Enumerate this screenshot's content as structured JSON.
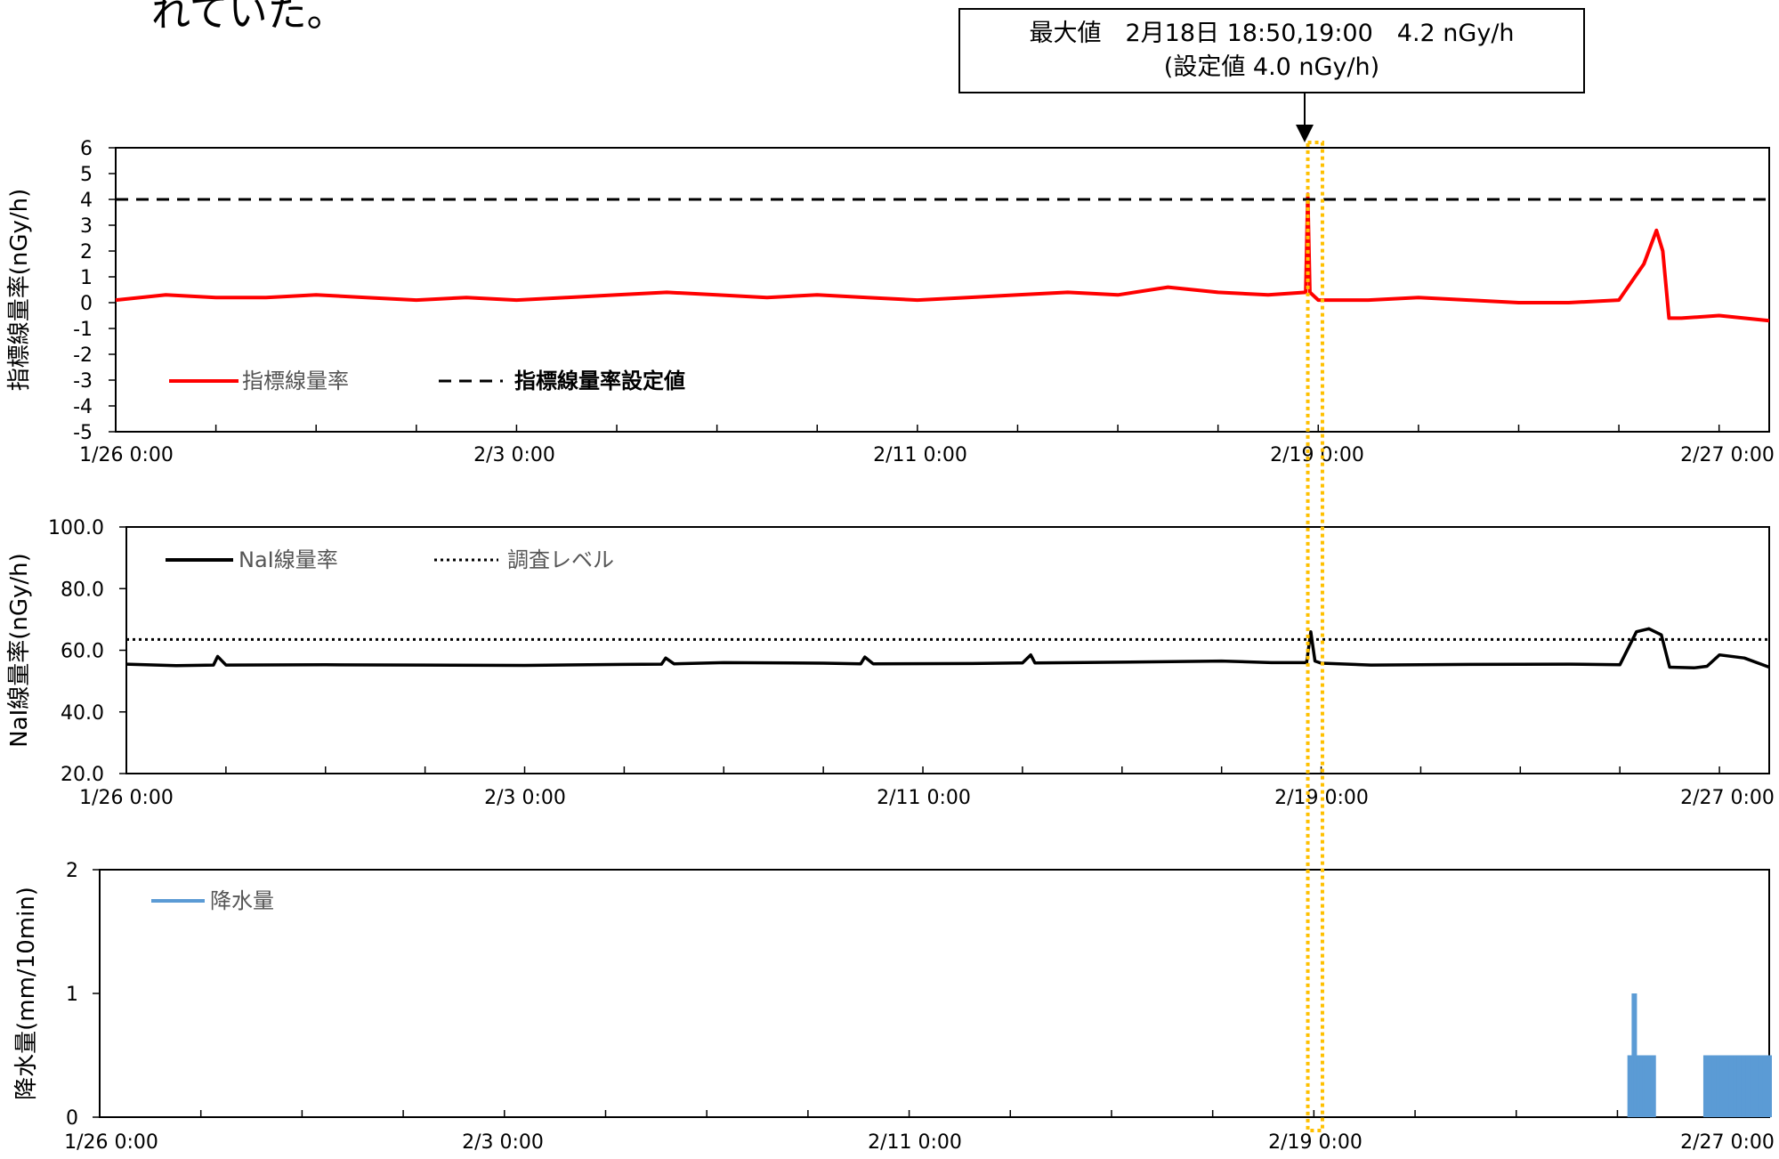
{
  "intro_text": "れていた。",
  "annotation": {
    "line1": "最大値　2月18日 18:50,19:00　4.2 nGy/h",
    "line2": "(設定値 4.0 nGy/h)"
  },
  "colors": {
    "index_series": "#ff0000",
    "nai_series": "#000000",
    "rain_series": "#5b9bd5",
    "highlight_box": "#ffc000"
  },
  "highlight": {
    "x_start": "2/18 19:00",
    "x_end": "2/19 02:00"
  },
  "chart_data": [
    {
      "type": "line",
      "ylabel": "指標線量率(nGy/h)",
      "ylim": [
        -5,
        6
      ],
      "yticks": [
        "6",
        "5",
        "4",
        "3",
        "2",
        "1",
        "0",
        "-1",
        "-2",
        "-3",
        "-4",
        "-5"
      ],
      "xticks": [
        "1/26 0:00",
        "2/3 0:00",
        "2/11 0:00",
        "2/19 0:00",
        "2/27 0:00"
      ],
      "xlim": [
        "1/26 0:00",
        "2/28 0:00"
      ],
      "legend_placement": "bottom-left",
      "series": [
        {
          "name": "指標線量率",
          "style": "solid",
          "x": [
            "1/26 0:00",
            "1/27 0:00",
            "1/28 0:00",
            "1/29 0:00",
            "1/30 0:00",
            "1/31 0:00",
            "2/1 0:00",
            "2/2 0:00",
            "2/3 0:00",
            "2/4 0:00",
            "2/5 0:00",
            "2/6 0:00",
            "2/7 0:00",
            "2/8 0:00",
            "2/9 0:00",
            "2/10 0:00",
            "2/11 0:00",
            "2/12 0:00",
            "2/13 0:00",
            "2/14 0:00",
            "2/15 0:00",
            "2/16 0:00",
            "2/17 0:00",
            "2/18 0:00",
            "2/18 18:00",
            "2/18 19:00",
            "2/18 20:00",
            "2/19 0:00",
            "2/20 0:00",
            "2/21 0:00",
            "2/22 0:00",
            "2/23 0:00",
            "2/24 0:00",
            "2/25 0:00",
            "2/25 12:00",
            "2/25 18:00",
            "2/25 21:00",
            "2/26 0:00",
            "2/26 6:00",
            "2/27 0:00",
            "2/28 0:00"
          ],
          "values": [
            0.1,
            0.3,
            0.2,
            0.2,
            0.3,
            0.2,
            0.1,
            0.2,
            0.1,
            0.2,
            0.3,
            0.4,
            0.3,
            0.2,
            0.3,
            0.2,
            0.1,
            0.2,
            0.3,
            0.4,
            0.3,
            0.6,
            0.4,
            0.3,
            0.4,
            4.2,
            0.4,
            0.1,
            0.1,
            0.2,
            0.1,
            0.0,
            0.0,
            0.1,
            1.5,
            2.8,
            2.0,
            -0.6,
            -0.6,
            -0.5,
            -0.7
          ]
        },
        {
          "name": "指標線量率設定値",
          "style": "dashed",
          "x": [
            "1/26 0:00",
            "2/28 0:00"
          ],
          "values": [
            4.0,
            4.0
          ]
        }
      ]
    },
    {
      "type": "line",
      "ylabel": "NaI線量率(nGy/h)",
      "ylim": [
        20,
        100
      ],
      "yticks": [
        "100.0",
        "80.0",
        "60.0",
        "40.0",
        "20.0"
      ],
      "xticks": [
        "1/26 0:00",
        "2/3 0:00",
        "2/11 0:00",
        "2/19 0:00",
        "2/27 0:00"
      ],
      "xlim": [
        "1/26 0:00",
        "2/28 0:00"
      ],
      "legend_placement": "top-left",
      "series": [
        {
          "name": "NaI線量率",
          "style": "solid",
          "x": [
            "1/26 0:00",
            "1/27 0:00",
            "1/27 18:00",
            "1/27 20:00",
            "1/28 0:00",
            "1/30 0:00",
            "2/1 0:00",
            "2/3 0:00",
            "2/5 0:00",
            "2/5 18:00",
            "2/5 20:00",
            "2/6 0:00",
            "2/7 0:00",
            "2/9 0:00",
            "2/9 18:00",
            "2/9 20:00",
            "2/10 0:00",
            "2/12 0:00",
            "2/13 0:00",
            "2/13 4:00",
            "2/13 6:00",
            "2/14 0:00",
            "2/16 0:00",
            "2/17 0:00",
            "2/18 0:00",
            "2/18 17:00",
            "2/18 19:00",
            "2/18 21:00",
            "2/19 0:00",
            "2/20 0:00",
            "2/22 0:00",
            "2/24 0:00",
            "2/25 0:00",
            "2/25 8:00",
            "2/25 14:00",
            "2/25 20:00",
            "2/26 0:00",
            "2/26 12:00",
            "2/26 18:00",
            "2/27 0:00",
            "2/27 12:00",
            "2/28 0:00"
          ],
          "values": [
            55.5,
            55.0,
            55.2,
            58.0,
            55.2,
            55.3,
            55.2,
            55.1,
            55.4,
            55.5,
            57.5,
            55.6,
            56.0,
            55.8,
            55.6,
            57.8,
            55.6,
            55.7,
            55.9,
            58.5,
            55.9,
            56.0,
            56.3,
            56.5,
            56.0,
            56.0,
            66.0,
            56.5,
            55.8,
            55.2,
            55.4,
            55.5,
            55.3,
            66.0,
            67.0,
            65.0,
            54.5,
            54.3,
            54.8,
            58.5,
            57.5,
            54.5
          ]
        },
        {
          "name": "調査レベル",
          "style": "dotted",
          "x": [
            "1/26 0:00",
            "2/28 0:00"
          ],
          "values": [
            63.5,
            63.5
          ]
        }
      ]
    },
    {
      "type": "bar",
      "ylabel": "降水量(mm/10min)",
      "ylim": [
        0,
        2
      ],
      "yticks": [
        "2",
        "1",
        "0"
      ],
      "xticks": [
        "1/26 0:00",
        "2/3 0:00",
        "2/11 0:00",
        "2/19 0:00",
        "2/27 0:00"
      ],
      "xlim": [
        "1/26 0:00",
        "2/28 0:00"
      ],
      "legend_placement": "top-left",
      "series": [
        {
          "name": "降水量",
          "x": [
            "2/25 6:00",
            "2/25 7:00",
            "2/25 8:00",
            "2/25 9:00",
            "2/25 10:00",
            "2/25 11:00",
            "2/25 12:00",
            "2/25 13:00",
            "2/25 14:00",
            "2/25 15:00",
            "2/25 16:00",
            "2/25 17:00",
            "2/26 18:00",
            "2/26 20:00",
            "2/26 22:00",
            "2/27 0:00",
            "2/27 2:00",
            "2/27 4:00",
            "2/27 6:00",
            "2/27 8:00",
            "2/27 10:00",
            "2/27 12:00",
            "2/27 14:00",
            "2/27 16:00",
            "2/27 18:00",
            "2/27 20:00",
            "2/27 22:00",
            "2/28 0:00"
          ],
          "values": [
            0.5,
            0.5,
            1.0,
            0.5,
            0.5,
            0.5,
            0.5,
            0.5,
            0.5,
            0.5,
            0.5,
            0.5,
            0.5,
            0.5,
            0.5,
            0.5,
            0.5,
            0.5,
            0.5,
            0.5,
            0.5,
            0.5,
            0.5,
            0.5,
            0.5,
            0.5,
            0.5,
            0.5
          ]
        }
      ]
    }
  ]
}
